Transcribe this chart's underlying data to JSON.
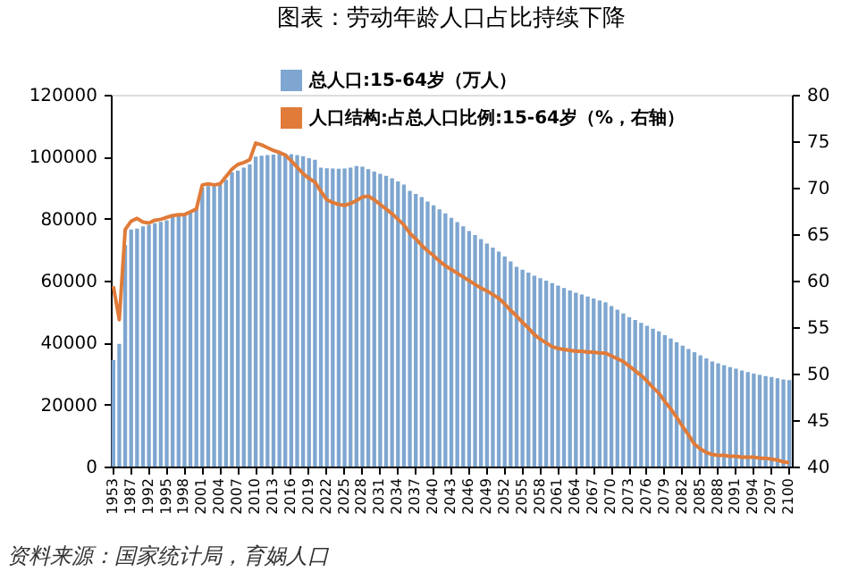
{
  "chart_data": {
    "type": "bar",
    "title": "图表：劳动年龄人口占比持续下降",
    "categories": [
      "1953",
      null,
      null,
      "1987",
      null,
      null,
      "1992",
      null,
      null,
      "1995",
      null,
      null,
      "1998",
      null,
      null,
      "2001",
      null,
      null,
      "2004",
      null,
      null,
      "2007",
      null,
      null,
      "2010",
      null,
      null,
      "2013",
      null,
      null,
      "2016",
      null,
      null,
      "2019",
      null,
      null,
      "2022",
      null,
      null,
      "2025",
      null,
      null,
      "2028",
      null,
      null,
      "2031",
      null,
      null,
      "2034",
      null,
      null,
      "2037",
      null,
      null,
      "2040",
      null,
      null,
      "2043",
      null,
      null,
      "2046",
      null,
      null,
      "2049",
      null,
      null,
      "2052",
      null,
      null,
      "2055",
      null,
      null,
      "2058",
      null,
      null,
      "2061",
      null,
      null,
      "2064",
      null,
      null,
      "2067",
      null,
      null,
      "2070",
      null,
      null,
      "2073",
      null,
      null,
      "2076",
      null,
      null,
      "2079",
      null,
      null,
      "2082",
      null,
      null,
      "2085",
      null,
      null,
      "2088",
      null,
      null,
      "2091",
      null,
      null,
      "2094",
      null,
      null,
      "2097",
      null,
      null,
      "2100"
    ],
    "series": [
      {
        "name": "总人口:15-64岁（万人）",
        "color": "#7ea6d0",
        "values": [
          34400,
          39600,
          71500,
          76500,
          76800,
          77500,
          78000,
          78500,
          79000,
          79500,
          80500,
          81000,
          81500,
          82000,
          83000,
          90000,
          90500,
          90500,
          91000,
          92500,
          95000,
          95500,
          96500,
          97500,
          100000,
          100300,
          100500,
          100700,
          101000,
          101000,
          100800,
          100500,
          100200,
          99500,
          99000,
          96500,
          96300,
          96200,
          96100,
          96200,
          96500,
          97000,
          96800,
          96000,
          95200,
          94500,
          93800,
          93000,
          92000,
          91000,
          89000,
          88000,
          87000,
          85500,
          84300,
          83000,
          81700,
          80300,
          78900,
          77500,
          76000,
          74700,
          73400,
          72000,
          70700,
          69400,
          67800,
          66200,
          64500,
          63500,
          62600,
          61600,
          60800,
          60000,
          59200,
          58400,
          57600,
          56800,
          56100,
          55500,
          54900,
          54200,
          53600,
          53000,
          51800,
          50600,
          49400,
          48200,
          47300,
          46400,
          45400,
          44500,
          43600,
          42400,
          41300,
          40100,
          39000,
          37900,
          36900,
          35900,
          34900,
          33900,
          33300,
          32700,
          32100,
          31600,
          31000,
          30500,
          30000,
          29600,
          29200,
          28900,
          28500,
          28100,
          27900
        ]
      },
      {
        "name": "人口结构:占总人口比例:15-64岁（%，右轴）",
        "type": "line",
        "axis": "y2",
        "color": "#e07b39",
        "values": [
          59.4,
          55.8,
          65.5,
          66.4,
          66.7,
          66.3,
          66.2,
          66.5,
          66.6,
          66.8,
          67.0,
          67.1,
          67.1,
          67.4,
          67.7,
          70.3,
          70.4,
          70.3,
          70.4,
          71.2,
          72.0,
          72.5,
          72.7,
          73.0,
          74.8,
          74.6,
          74.3,
          74.0,
          73.8,
          73.5,
          72.9,
          72.2,
          71.5,
          71.0,
          70.6,
          69.6,
          68.7,
          68.4,
          68.2,
          68.1,
          68.3,
          68.6,
          69.0,
          69.1,
          68.7,
          68.2,
          67.7,
          67.2,
          66.6,
          66.0,
          65.1,
          64.5,
          63.8,
          63.2,
          62.7,
          62.1,
          61.6,
          61.2,
          60.8,
          60.4,
          60.0,
          59.6,
          59.2,
          58.9,
          58.5,
          58.1,
          57.5,
          56.8,
          56.2,
          55.5,
          54.9,
          54.2,
          53.7,
          53.3,
          52.9,
          52.7,
          52.6,
          52.5,
          52.4,
          52.4,
          52.3,
          52.3,
          52.2,
          52.2,
          51.9,
          51.6,
          51.3,
          50.8,
          50.3,
          49.8,
          49.2,
          48.5,
          47.9,
          47.0,
          46.2,
          45.3,
          44.3,
          43.4,
          42.4,
          41.9,
          41.5,
          41.3,
          41.2,
          41.2,
          41.1,
          41.1,
          41.0,
          41.0,
          41.0,
          40.9,
          40.9,
          40.8,
          40.7,
          40.5,
          40.4
        ]
      }
    ],
    "ylim": [
      0,
      120000
    ],
    "yticks": [
      0,
      20000,
      40000,
      60000,
      80000,
      100000,
      120000
    ],
    "y2lim": [
      40,
      80
    ],
    "y2ticks": [
      40,
      45,
      50,
      55,
      60,
      65,
      70,
      75,
      80
    ],
    "grid": false,
    "legend": "top",
    "annotations": [
      "资料来源：国家统计局，育娲人口"
    ]
  }
}
